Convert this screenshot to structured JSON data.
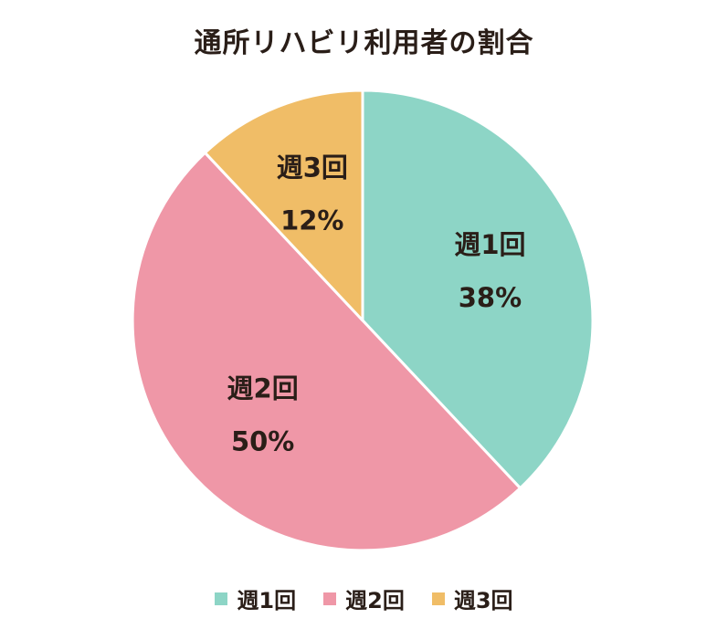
{
  "chart_data": {
    "type": "pie",
    "title": "通所リハビリ利用者の割合",
    "categories": [
      "週1回",
      "週2回",
      "週3回"
    ],
    "values": [
      38,
      50,
      12
    ],
    "value_labels": [
      "38%",
      "50%",
      "12%"
    ],
    "colors": [
      "#8dd5c6",
      "#ef97a7",
      "#f0bd67"
    ],
    "start_angle_deg": 0,
    "direction": "clockwise",
    "legend_position": "bottom"
  },
  "legend": {
    "items": [
      {
        "label": "週1回",
        "color": "#8dd5c6"
      },
      {
        "label": "週2回",
        "color": "#ef97a7"
      },
      {
        "label": "週3回",
        "color": "#f0bd67"
      }
    ]
  }
}
